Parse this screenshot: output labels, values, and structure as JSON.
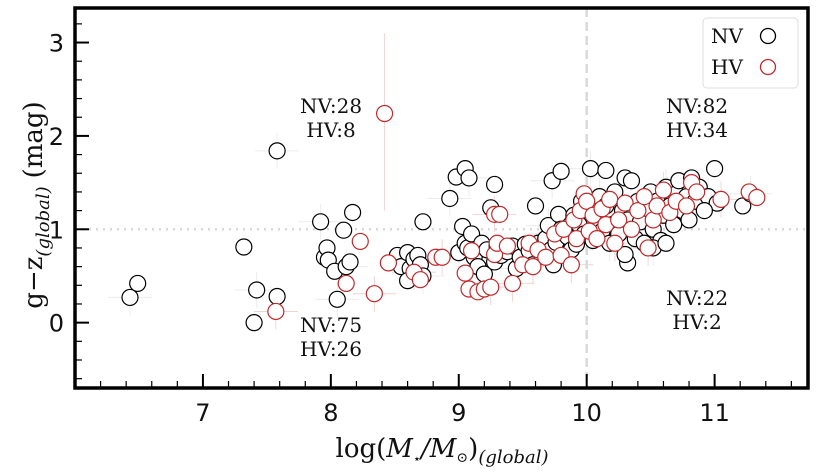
{
  "chart_data": {
    "type": "scatter",
    "title": "",
    "xlabel": "log(M⋆/M⊙)(global)",
    "xlabel_main": "log(",
    "xlabel_parts": {
      "M1": "M",
      "star": "⋆",
      "slash": "/M",
      "sun": "⊙",
      "close": ")",
      "sub": "(global)"
    },
    "ylabel_main": "g−z",
    "ylabel_sub": "(global)",
    "ylabel_unit": "(mag)",
    "xlim": [
      6.0,
      11.73
    ],
    "ylim": [
      -0.7,
      3.37
    ],
    "xticks": [
      7,
      8,
      9,
      10,
      11
    ],
    "xtick_labels": [
      "7",
      "8",
      "9",
      "10",
      "11"
    ],
    "yticks": [
      0,
      1,
      2,
      3
    ],
    "ytick_labels": [
      "0",
      "1",
      "2",
      "3"
    ],
    "grid": false,
    "reference_lines": {
      "vertical_x": 10,
      "horizontal_y": 1
    },
    "legend": {
      "placement": "top-right",
      "entries": [
        {
          "label": "NV",
          "color": "#000000"
        },
        {
          "label": "HV",
          "color": "#c0282a"
        }
      ]
    },
    "quadrant_annotations": [
      {
        "id": "upper-left",
        "lines": [
          "NV:28",
          "HV:8"
        ],
        "x": 8.0,
        "y": 2.2
      },
      {
        "id": "lower-left",
        "lines": [
          "NV:75",
          "HV:26"
        ],
        "x": 8.0,
        "y": -0.15
      },
      {
        "id": "upper-right",
        "lines": [
          "NV:82",
          "HV:34"
        ],
        "x": 10.86,
        "y": 2.2
      },
      {
        "id": "lower-right",
        "lines": [
          "NV:22",
          "HV:2"
        ],
        "x": 10.86,
        "y": 0.1
      }
    ],
    "series": [
      {
        "name": "NV",
        "color": "#000000",
        "points": [
          [
            6.43,
            0.27
          ],
          [
            6.49,
            0.42
          ],
          [
            7.32,
            0.81
          ],
          [
            7.42,
            0.35
          ],
          [
            7.4,
            0.0
          ],
          [
            7.58,
            0.28
          ],
          [
            7.58,
            1.84
          ],
          [
            7.95,
            0.7
          ],
          [
            7.97,
            0.8
          ],
          [
            7.92,
            1.08
          ],
          [
            7.98,
            0.67
          ],
          [
            8.03,
            0.55
          ],
          [
            8.05,
            0.25
          ],
          [
            8.1,
            0.99
          ],
          [
            8.17,
            1.18
          ],
          [
            8.12,
            0.6
          ],
          [
            8.15,
            0.65
          ],
          [
            8.52,
            0.72
          ],
          [
            8.55,
            0.6
          ],
          [
            8.6,
            0.75
          ],
          [
            8.62,
            0.58
          ],
          [
            8.65,
            0.68
          ],
          [
            8.68,
            0.72
          ],
          [
            8.7,
            0.62
          ],
          [
            8.72,
            0.5
          ],
          [
            8.6,
            0.45
          ],
          [
            8.72,
            1.08
          ],
          [
            8.93,
            1.33
          ],
          [
            8.98,
            1.56
          ],
          [
            9.05,
            1.65
          ],
          [
            9.08,
            1.55
          ],
          [
            9.28,
            1.48
          ],
          [
            9.25,
            1.23
          ],
          [
            9.0,
            0.75
          ],
          [
            9.05,
            0.85
          ],
          [
            9.03,
            1.03
          ],
          [
            9.07,
            0.8
          ],
          [
            9.1,
            0.95
          ],
          [
            9.12,
            0.7
          ],
          [
            9.15,
            0.6
          ],
          [
            9.18,
            0.85
          ],
          [
            9.2,
            0.52
          ],
          [
            9.22,
            0.78
          ],
          [
            9.28,
            0.65
          ],
          [
            9.3,
            0.82
          ],
          [
            9.33,
            0.72
          ],
          [
            9.38,
            0.76
          ],
          [
            9.42,
            0.82
          ],
          [
            9.45,
            0.58
          ],
          [
            9.48,
            0.7
          ],
          [
            9.52,
            0.84
          ],
          [
            9.55,
            0.77
          ],
          [
            9.58,
            0.62
          ],
          [
            9.6,
            1.25
          ],
          [
            9.62,
            0.85
          ],
          [
            9.65,
            0.72
          ],
          [
            9.68,
            0.9
          ],
          [
            9.7,
            1.04
          ],
          [
            9.72,
            0.78
          ],
          [
            9.74,
            0.62
          ],
          [
            9.76,
            0.86
          ],
          [
            9.78,
            1.16
          ],
          [
            9.8,
            1.0
          ],
          [
            9.73,
            1.52
          ],
          [
            9.8,
            1.62
          ],
          [
            9.85,
            0.92
          ],
          [
            9.88,
            0.78
          ],
          [
            9.9,
            1.15
          ],
          [
            9.92,
            0.84
          ],
          [
            9.94,
            1.05
          ],
          [
            9.96,
            1.3
          ],
          [
            9.98,
            0.95
          ],
          [
            10.02,
            1.2
          ],
          [
            10.05,
            0.88
          ],
          [
            10.08,
            1.1
          ],
          [
            10.1,
            1.35
          ],
          [
            10.12,
            0.98
          ],
          [
            10.15,
            1.25
          ],
          [
            10.18,
            0.85
          ],
          [
            10.2,
            1.05
          ],
          [
            10.22,
            1.4
          ],
          [
            10.25,
            0.95
          ],
          [
            10.28,
            1.2
          ],
          [
            10.3,
            1.55
          ],
          [
            10.32,
            1.1
          ],
          [
            10.35,
            1.52
          ],
          [
            10.38,
            0.9
          ],
          [
            10.4,
            1.3
          ],
          [
            10.42,
            1.08
          ],
          [
            10.45,
            0.85
          ],
          [
            10.48,
            1.22
          ],
          [
            10.5,
            1.4
          ],
          [
            10.52,
            1.0
          ],
          [
            10.55,
            1.3
          ],
          [
            10.58,
            0.88
          ],
          [
            10.6,
            1.15
          ],
          [
            10.62,
            1.45
          ],
          [
            10.65,
            1.25
          ],
          [
            10.68,
            1.05
          ],
          [
            10.7,
            1.38
          ],
          [
            10.72,
            1.52
          ],
          [
            10.75,
            1.2
          ],
          [
            10.78,
            1.35
          ],
          [
            10.8,
            1.1
          ],
          [
            10.82,
            1.55
          ],
          [
            10.85,
            1.3
          ],
          [
            10.88,
            1.45
          ],
          [
            10.32,
            0.64
          ],
          [
            10.52,
            0.8
          ],
          [
            10.62,
            0.85
          ],
          [
            10.3,
            0.73
          ],
          [
            10.03,
            1.65
          ],
          [
            10.15,
            1.63
          ],
          [
            11.0,
            1.65
          ],
          [
            10.95,
            1.35
          ],
          [
            11.02,
            1.28
          ],
          [
            11.22,
            1.25
          ],
          [
            11.28,
            1.38
          ],
          [
            10.92,
            1.2
          ]
        ]
      },
      {
        "name": "HV",
        "color": "#c0282a",
        "points": [
          [
            7.57,
            0.12
          ],
          [
            8.12,
            0.42
          ],
          [
            8.23,
            0.87
          ],
          [
            8.34,
            0.31
          ],
          [
            8.42,
            2.24
          ],
          [
            8.45,
            0.64
          ],
          [
            8.65,
            0.54
          ],
          [
            8.7,
            0.46
          ],
          [
            8.82,
            0.7
          ],
          [
            8.87,
            0.7
          ],
          [
            9.05,
            0.53
          ],
          [
            9.08,
            0.36
          ],
          [
            9.1,
            0.77
          ],
          [
            9.15,
            0.33
          ],
          [
            9.2,
            0.36
          ],
          [
            9.25,
            0.38
          ],
          [
            9.28,
            0.73
          ],
          [
            9.3,
            0.85
          ],
          [
            9.28,
            1.16
          ],
          [
            9.32,
            1.16
          ],
          [
            9.38,
            0.82
          ],
          [
            9.42,
            0.42
          ],
          [
            9.5,
            0.62
          ],
          [
            9.55,
            0.85
          ],
          [
            9.58,
            0.6
          ],
          [
            9.62,
            0.78
          ],
          [
            9.68,
            0.7
          ],
          [
            9.75,
            0.95
          ],
          [
            9.8,
            0.72
          ],
          [
            9.82,
            1.0
          ],
          [
            9.88,
            0.62
          ],
          [
            9.9,
            1.1
          ],
          [
            9.92,
            0.9
          ],
          [
            9.95,
            1.2
          ],
          [
            9.98,
            1.38
          ],
          [
            10.0,
            1.3
          ],
          [
            10.02,
            0.98
          ],
          [
            10.05,
            1.15
          ],
          [
            10.08,
            0.9
          ],
          [
            10.12,
            1.22
          ],
          [
            10.15,
            1.05
          ],
          [
            10.18,
            1.32
          ],
          [
            10.22,
            0.85
          ],
          [
            10.25,
            1.1
          ],
          [
            10.3,
            1.28
          ],
          [
            10.35,
            1.0
          ],
          [
            10.4,
            1.2
          ],
          [
            10.45,
            1.35
          ],
          [
            10.48,
            0.8
          ],
          [
            10.52,
            1.1
          ],
          [
            10.55,
            1.25
          ],
          [
            10.6,
            1.42
          ],
          [
            10.65,
            1.18
          ],
          [
            10.7,
            1.3
          ],
          [
            10.78,
            1.25
          ],
          [
            10.82,
            1.5
          ],
          [
            10.86,
            1.4
          ],
          [
            11.05,
            1.32
          ],
          [
            11.27,
            1.4
          ],
          [
            11.33,
            1.34
          ]
        ]
      }
    ]
  }
}
